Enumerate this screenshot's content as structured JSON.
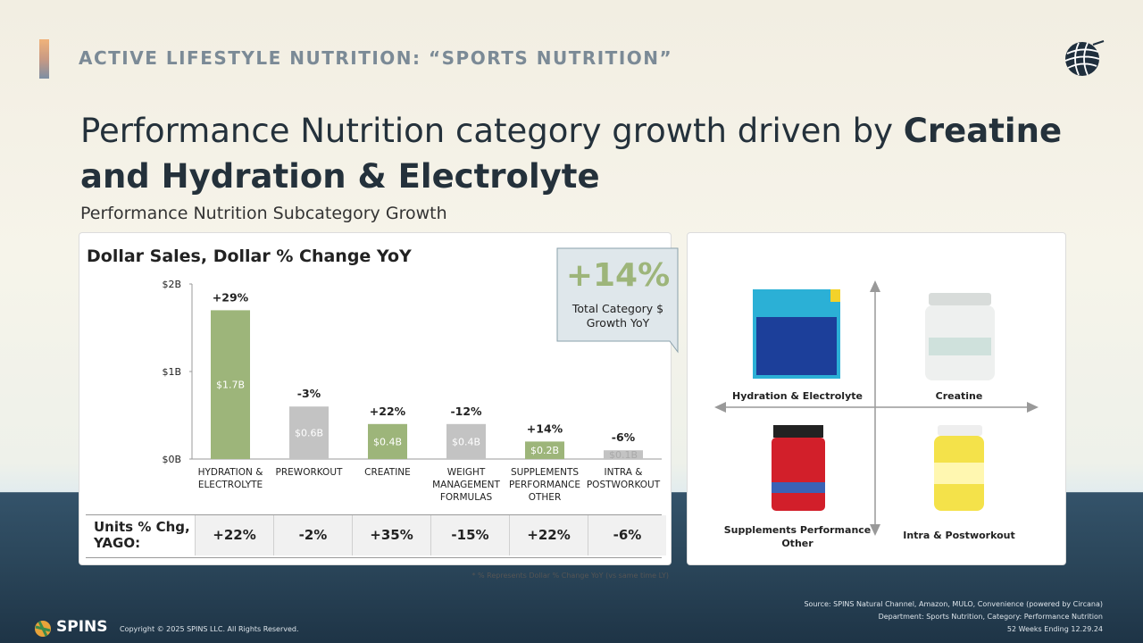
{
  "header": {
    "section": "ACTIVE LIFESTYLE NUTRITION: “SPORTS NUTRITION”",
    "headline_regular": "Performance Nutrition category growth driven by",
    "headline_bold": "Creatine and Hydration & Electrolyte",
    "subtitle": "Performance Nutrition Subcategory Growth"
  },
  "chart_data": {
    "type": "bar",
    "title": "Dollar Sales, Dollar % Change YoY",
    "categories": [
      "HYDRATION & ELECTROLYTE",
      "PREWORKOUT",
      "CREATINE",
      "WEIGHT MANAGEMENT FORMULAS",
      "SUPPLEMENTS PERFORMANCE OTHER",
      "INTRA & POSTWORKOUT"
    ],
    "values": [
      1.7,
      0.6,
      0.4,
      0.4,
      0.2,
      0.1
    ],
    "value_labels": [
      "$1.7B",
      "$0.6B",
      "$0.4B",
      "$0.4B",
      "$0.2B",
      "$0.1B"
    ],
    "colors": [
      "#9db57a",
      "#c3c3c3",
      "#9db57a",
      "#c3c3c3",
      "#9db57a",
      "#c3c3c3"
    ],
    "annotations": [
      "+29%",
      "-3%",
      "+22%",
      "-12%",
      "+14%",
      "-6%"
    ],
    "ylim": [
      0,
      2
    ],
    "yticks": [
      {
        "value": 0,
        "label": "$0B"
      },
      {
        "value": 1,
        "label": "$1B"
      },
      {
        "value": 2,
        "label": "$2B"
      }
    ],
    "grid": false
  },
  "callout": {
    "value": "+14%",
    "label": "Total Category $ Growth YoY"
  },
  "units_row": {
    "label": "Units % Chg, YAGO:",
    "cells": [
      "+22%",
      "-2%",
      "+35%",
      "-15%",
      "+22%",
      "-6%"
    ]
  },
  "quadrant": {
    "labels": [
      "Hydration & Electrolyte",
      "Creatine",
      "Supplements Performance Other",
      "Intra & Postworkout"
    ]
  },
  "footnote": "* % Represents Dollar % Change YoY (vs same time LY)",
  "source": [
    "Source: SPINS Natural Channel, Amazon, MULO, Convenience  (powered by  Circana)",
    "Department: Sports Nutrition, Category: Performance Nutrition",
    "52 Weeks Ending 12.29.24"
  ],
  "footer": {
    "brand": "SPINS",
    "copyright": "Copyright © 2025 SPINS LLC. All Rights Reserved."
  }
}
